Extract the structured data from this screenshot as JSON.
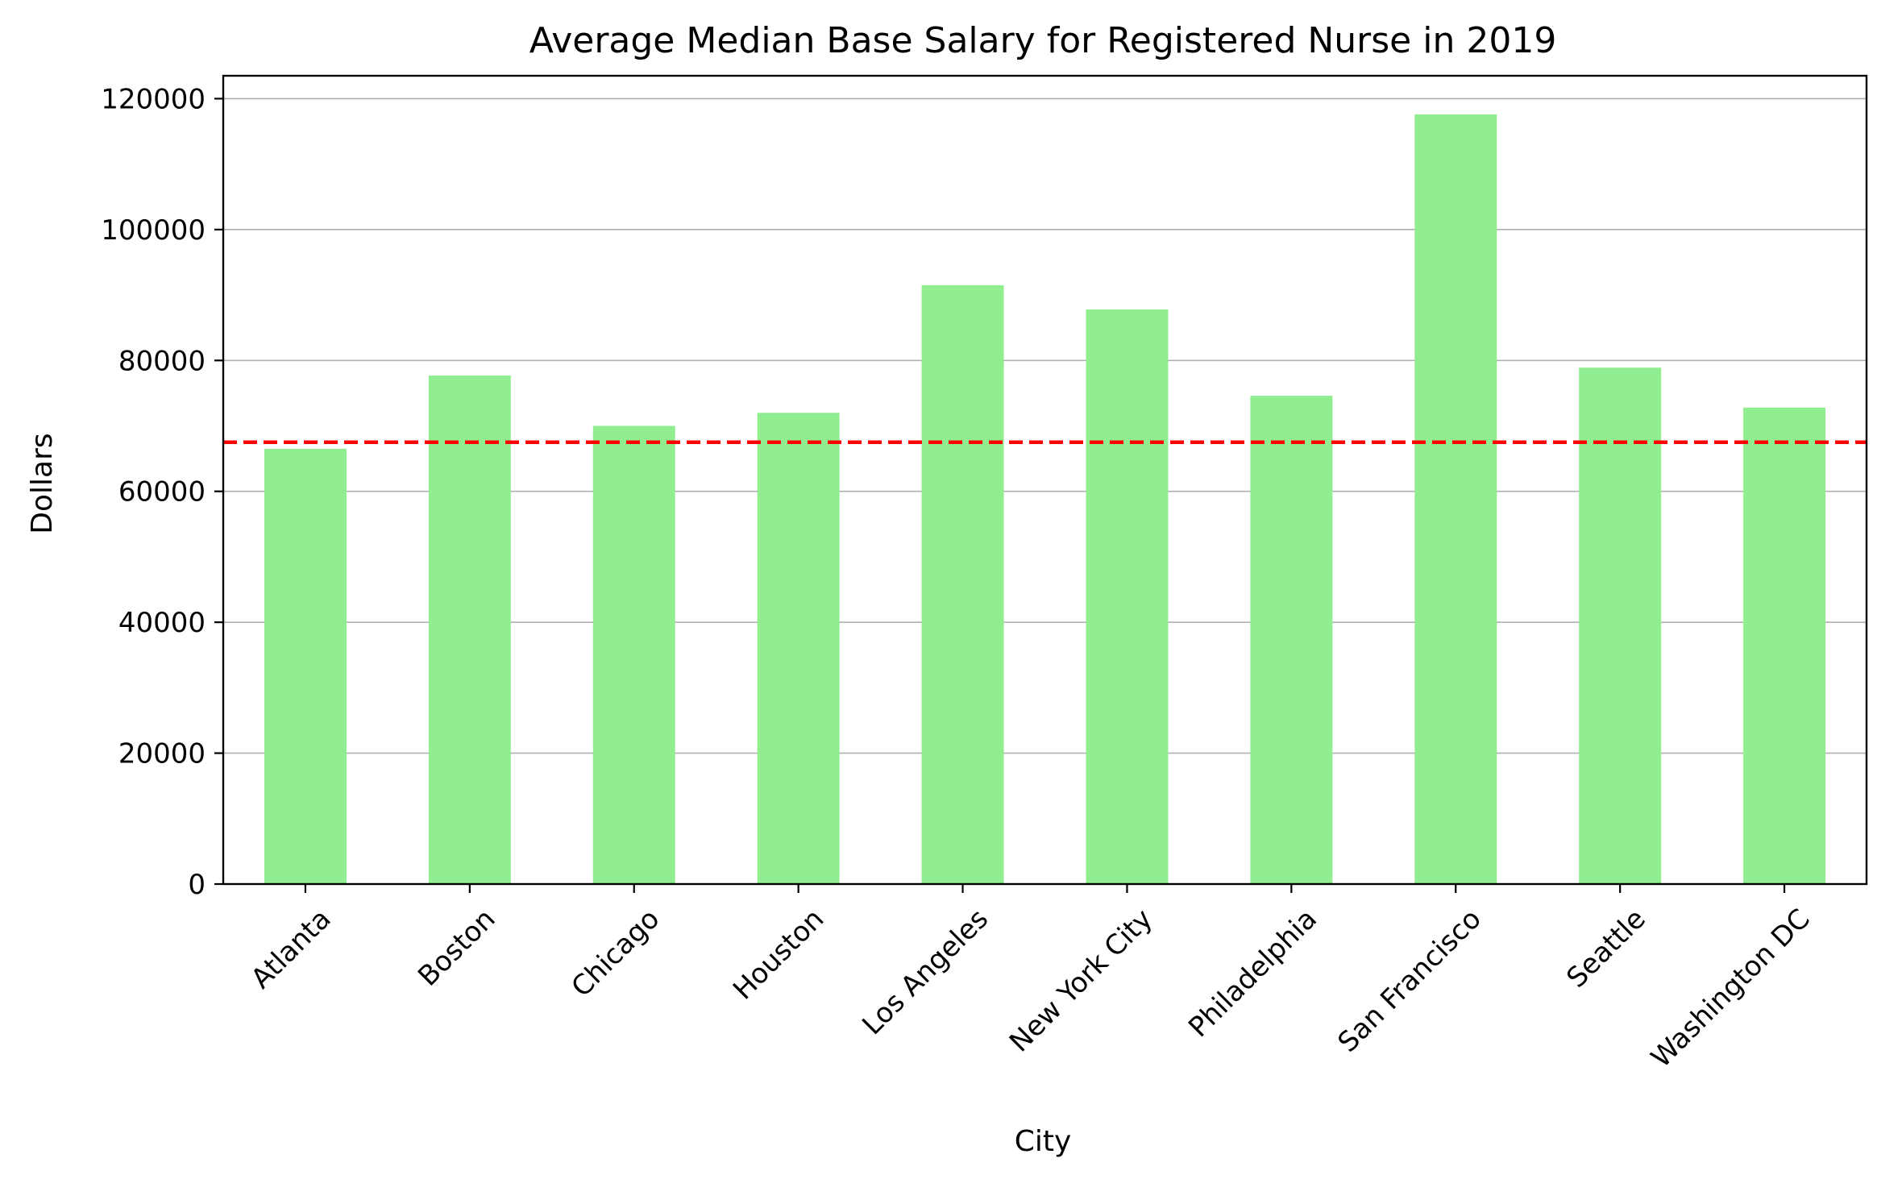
{
  "chart_data": {
    "type": "bar",
    "title": "Average Median Base Salary for Registered Nurse in 2019",
    "xlabel": "City",
    "ylabel": "Dollars",
    "categories": [
      "Atlanta",
      "Boston",
      "Chicago",
      "Houston",
      "Los Angeles",
      "New York City",
      "Philadelphia",
      "San Francisco",
      "Seattle",
      "Washington DC"
    ],
    "values": [
      66500,
      77700,
      70000,
      72000,
      91500,
      87800,
      74600,
      117600,
      78900,
      72800
    ],
    "reference_line": {
      "value": 67500,
      "style": "dashed",
      "color": "#ff0000"
    },
    "ylim": [
      0,
      123500
    ],
    "yticks": [
      0,
      20000,
      40000,
      60000,
      80000,
      100000,
      120000
    ],
    "ytick_labels": [
      "0",
      "20000",
      "40000",
      "60000",
      "80000",
      "100000",
      "120000"
    ],
    "grid": {
      "y": true,
      "x": false
    },
    "bar_color": "#90ee90",
    "xtick_rotation_deg": -45
  }
}
